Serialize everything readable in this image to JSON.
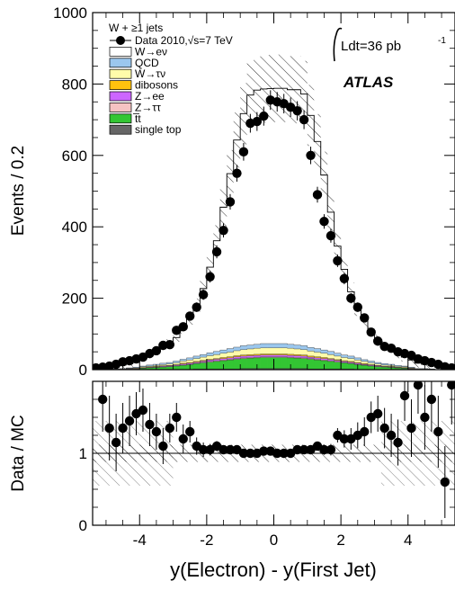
{
  "chart_data": [
    {
      "type": "histogram",
      "panel": "main",
      "xlabel": "y(Electron) - y(First Jet)",
      "ylabel": "Events / 0.2",
      "xlim": [
        -5.4,
        5.4
      ],
      "ylim": [
        0,
        1000
      ],
      "yticks": [
        "0",
        "200",
        "400",
        "600",
        "800",
        "1000"
      ],
      "xticks": [
        "-4",
        "-2",
        "0",
        "2",
        "4"
      ],
      "legend_header": "W + ≥1 jets",
      "legend_position": "top-left",
      "lumi_label": "Ldt=36 pb",
      "lumi_exponent": "-1",
      "experiment_label": "ATLAS",
      "bin_width": 0.2,
      "bin_centers": [
        -5.3,
        -5.1,
        -4.9,
        -4.7,
        -4.5,
        -4.3,
        -4.1,
        -3.9,
        -3.7,
        -3.5,
        -3.3,
        -3.1,
        -2.9,
        -2.7,
        -2.5,
        -2.3,
        -2.1,
        -1.9,
        -1.7,
        -1.5,
        -1.3,
        -1.1,
        -0.9,
        -0.7,
        -0.5,
        -0.3,
        -0.1,
        0.1,
        0.3,
        0.5,
        0.7,
        0.9,
        1.1,
        1.3,
        1.5,
        1.7,
        1.9,
        2.1,
        2.3,
        2.5,
        2.7,
        2.9,
        3.1,
        3.3,
        3.5,
        3.7,
        3.9,
        4.1,
        4.3,
        4.5,
        4.7,
        4.9,
        5.1,
        5.3
      ],
      "series": [
        {
          "name": "Data 2010,√s=7 TeV",
          "kind": "points",
          "color": "#000000",
          "values": [
            5,
            7,
            10,
            15,
            22,
            25,
            30,
            35,
            45,
            53,
            68,
            70,
            110,
            120,
            150,
            175,
            210,
            260,
            330,
            390,
            470,
            550,
            610,
            690,
            695,
            710,
            755,
            750,
            745,
            735,
            725,
            700,
            600,
            490,
            415,
            375,
            305,
            255,
            200,
            175,
            145,
            105,
            80,
            65,
            60,
            50,
            45,
            40,
            30,
            25,
            20,
            15,
            8,
            5
          ]
        },
        {
          "name": "W→eν",
          "kind": "stacked",
          "color": "#ffffff",
          "values": [
            2,
            3,
            5,
            7,
            10,
            12,
            15,
            20,
            28,
            35,
            45,
            53,
            66,
            85,
            110,
            140,
            185,
            240,
            310,
            400,
            490,
            580,
            650,
            700,
            712,
            713,
            714,
            715,
            715,
            713,
            715,
            705,
            650,
            580,
            490,
            390,
            300,
            240,
            180,
            138,
            110,
            86,
            66,
            53,
            40,
            32,
            25,
            20,
            15,
            12,
            10,
            7,
            5,
            3
          ]
        },
        {
          "name": "QCD",
          "kind": "stacked",
          "color": "#9bc7ee",
          "values": [
            0,
            0,
            0,
            1,
            1,
            1,
            2,
            2,
            3,
            3,
            4,
            4,
            5,
            5,
            6,
            7,
            7,
            8,
            9,
            9,
            10,
            10,
            11,
            11,
            11,
            12,
            12,
            12,
            12,
            11,
            11,
            11,
            10,
            10,
            9,
            9,
            8,
            7,
            7,
            6,
            5,
            5,
            4,
            4,
            3,
            3,
            2,
            2,
            1,
            1,
            1,
            0,
            0,
            0
          ]
        },
        {
          "name": "W→τν",
          "kind": "stacked",
          "color": "#fffcaa",
          "values": [
            0,
            0,
            0,
            0,
            1,
            1,
            1,
            2,
            2,
            3,
            3,
            4,
            5,
            6,
            7,
            8,
            9,
            10,
            11,
            12,
            13,
            14,
            15,
            16,
            17,
            17,
            17,
            17,
            17,
            17,
            16,
            15,
            14,
            13,
            12,
            11,
            10,
            9,
            8,
            7,
            6,
            5,
            4,
            3,
            3,
            2,
            2,
            1,
            1,
            1,
            0,
            0,
            0,
            0
          ]
        },
        {
          "name": "dibosons",
          "kind": "stacked",
          "color": "#ffc20e",
          "values": [
            0,
            0,
            0,
            0,
            0,
            0,
            1,
            1,
            1,
            1,
            1,
            1,
            1,
            2,
            2,
            2,
            2,
            2,
            2,
            3,
            3,
            3,
            3,
            3,
            3,
            3,
            3,
            3,
            3,
            3,
            3,
            3,
            3,
            3,
            3,
            2,
            2,
            2,
            2,
            2,
            2,
            1,
            1,
            1,
            1,
            1,
            1,
            1,
            0,
            0,
            0,
            0,
            0,
            0
          ]
        },
        {
          "name": "Z→ee",
          "kind": "stacked",
          "color": "#cc66ff",
          "values": [
            0,
            0,
            0,
            0,
            0,
            1,
            1,
            1,
            1,
            1,
            2,
            2,
            2,
            3,
            3,
            3,
            3,
            4,
            4,
            4,
            4,
            5,
            5,
            5,
            5,
            5,
            5,
            5,
            5,
            5,
            5,
            5,
            4,
            4,
            4,
            4,
            3,
            3,
            3,
            3,
            2,
            2,
            2,
            1,
            1,
            1,
            1,
            1,
            0,
            0,
            0,
            0,
            0,
            0
          ]
        },
        {
          "name": "Z→ττ",
          "kind": "stacked",
          "color": "#f5c3c3",
          "values": [
            0,
            0,
            0,
            0,
            0,
            0,
            0,
            0,
            1,
            1,
            1,
            1,
            1,
            1,
            1,
            1,
            2,
            2,
            2,
            2,
            2,
            2,
            2,
            2,
            2,
            2,
            2,
            2,
            2,
            2,
            2,
            2,
            2,
            2,
            2,
            2,
            2,
            1,
            1,
            1,
            1,
            1,
            1,
            1,
            1,
            0,
            0,
            0,
            0,
            0,
            0,
            0,
            0,
            0
          ]
        },
        {
          "name": "t̅t",
          "kind": "stacked",
          "color": "#33c633",
          "values": [
            0,
            0,
            1,
            1,
            1,
            2,
            2,
            3,
            4,
            5,
            6,
            7,
            9,
            11,
            13,
            15,
            17,
            19,
            21,
            23,
            25,
            27,
            28,
            29,
            30,
            31,
            31,
            31,
            31,
            30,
            29,
            28,
            27,
            25,
            23,
            21,
            19,
            17,
            15,
            13,
            11,
            9,
            7,
            6,
            5,
            4,
            3,
            2,
            1,
            1,
            1,
            0,
            0,
            0
          ]
        },
        {
          "name": "single top",
          "kind": "stacked",
          "color": "#666666",
          "values": [
            0,
            0,
            0,
            0,
            0,
            0,
            0,
            1,
            1,
            1,
            1,
            1,
            1,
            1,
            1,
            2,
            2,
            2,
            2,
            2,
            2,
            2,
            3,
            3,
            3,
            3,
            3,
            3,
            3,
            3,
            3,
            3,
            2,
            2,
            2,
            2,
            2,
            2,
            2,
            1,
            1,
            1,
            1,
            1,
            1,
            1,
            1,
            0,
            0,
            0,
            0,
            0,
            0,
            0
          ]
        }
      ]
    },
    {
      "type": "scatter",
      "panel": "ratio",
      "ylabel": "Data / MC",
      "xlim": [
        -5.4,
        5.4
      ],
      "ylim": [
        0,
        2.0
      ],
      "yticks": [
        "0",
        "1"
      ],
      "reference_line": 1,
      "x": [
        -5.1,
        -4.9,
        -4.7,
        -4.5,
        -4.3,
        -4.1,
        -3.9,
        -3.7,
        -3.5,
        -3.3,
        -3.1,
        -2.9,
        -2.7,
        -2.5,
        -2.3,
        -2.1,
        -1.9,
        -1.7,
        -1.5,
        -1.3,
        -1.1,
        -0.9,
        -0.7,
        -0.5,
        -0.3,
        -0.1,
        0.1,
        0.3,
        0.5,
        0.7,
        0.9,
        1.1,
        1.3,
        1.5,
        1.7,
        1.9,
        2.1,
        2.3,
        2.5,
        2.7,
        2.9,
        3.1,
        3.3,
        3.5,
        3.7,
        3.9,
        4.1,
        4.3,
        4.5,
        4.7,
        4.9,
        5.1,
        5.3
      ],
      "y": [
        1.75,
        1.35,
        1.15,
        1.35,
        1.45,
        1.55,
        1.6,
        1.4,
        1.3,
        1.1,
        1.35,
        1.5,
        1.2,
        1.3,
        1.1,
        1.05,
        1.05,
        1.1,
        1.05,
        1.05,
        1.05,
        1.0,
        1.0,
        1.0,
        1.03,
        1.03,
        1.0,
        1.0,
        1.0,
        1.05,
        1.05,
        1.05,
        1.1,
        1.05,
        1.05,
        1.25,
        1.2,
        1.2,
        1.25,
        1.3,
        1.5,
        1.55,
        1.35,
        1.25,
        1.15,
        1.8,
        1.35,
        1.95,
        1.5,
        1.75,
        1.3,
        0.6,
        1.95
      ],
      "errors": [
        0.45,
        0.45,
        0.4,
        0.35,
        0.35,
        0.3,
        0.3,
        0.3,
        0.25,
        0.25,
        0.2,
        0.2,
        0.2,
        0.15,
        0.12,
        0.1,
        0.08,
        0.07,
        0.06,
        0.05,
        0.05,
        0.04,
        0.04,
        0.04,
        0.04,
        0.04,
        0.04,
        0.04,
        0.04,
        0.04,
        0.05,
        0.05,
        0.06,
        0.07,
        0.08,
        0.1,
        0.12,
        0.15,
        0.18,
        0.2,
        0.22,
        0.25,
        0.28,
        0.3,
        0.32,
        0.35,
        0.4,
        0.4,
        0.45,
        0.45,
        0.5,
        0.5,
        0.55
      ]
    }
  ]
}
